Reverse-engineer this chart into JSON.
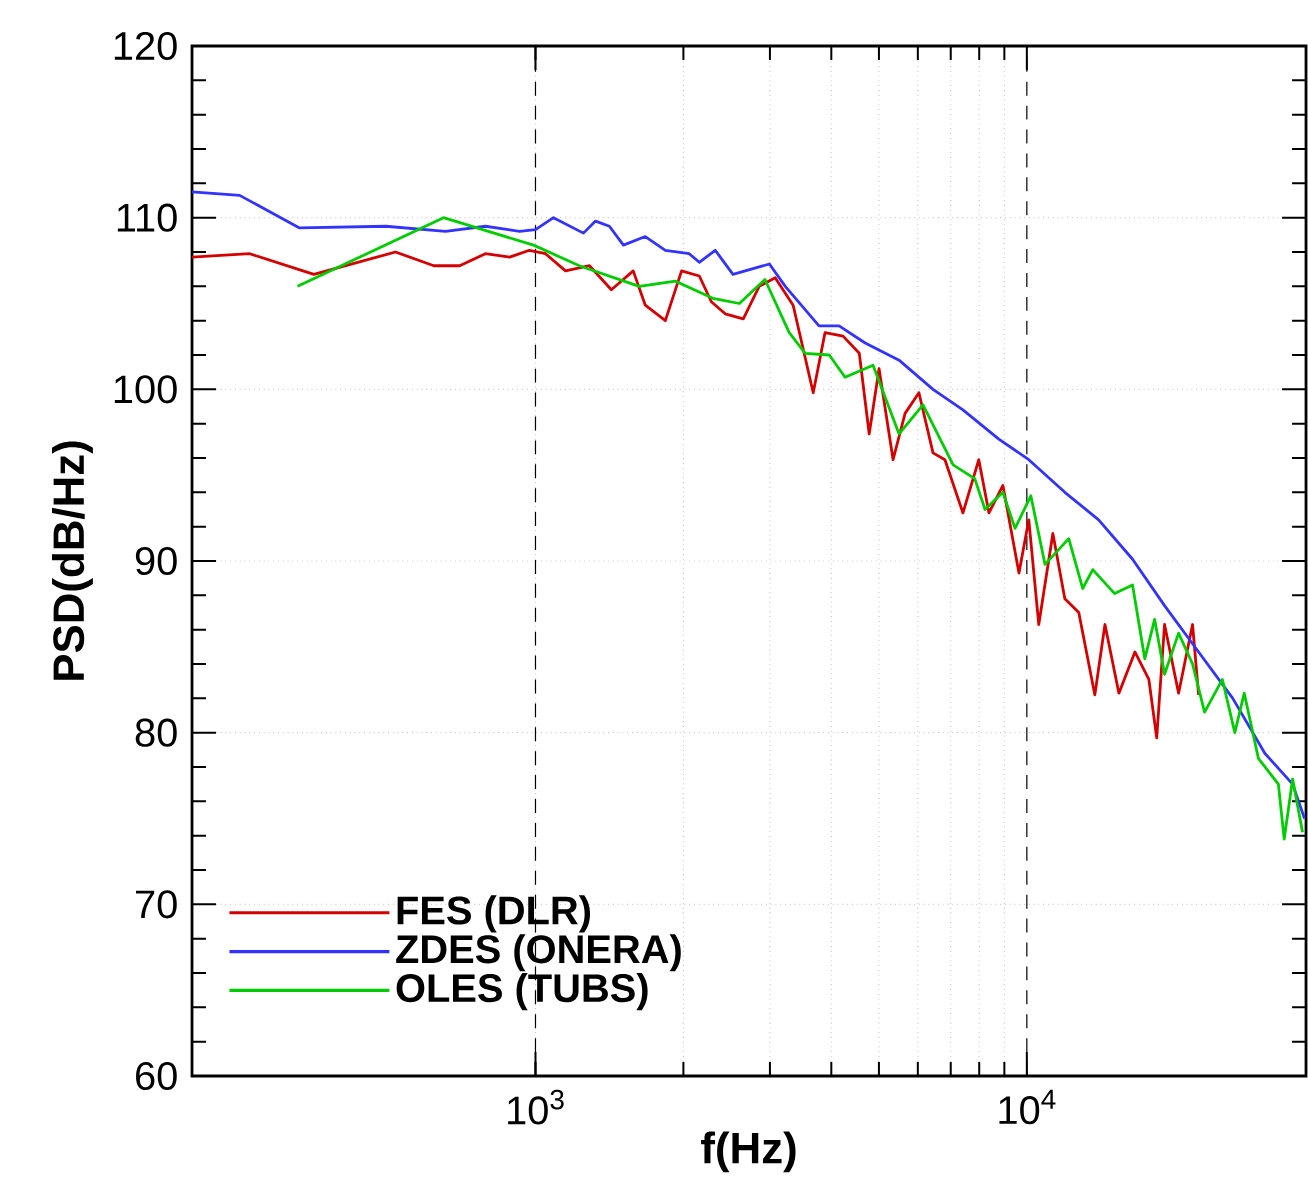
{
  "chart_data": {
    "type": "line",
    "xlabel": "f(Hz)",
    "ylabel": "PSD(dB/Hz)",
    "log": "x",
    "xlim": [
      200,
      37000
    ],
    "ylim": [
      60,
      120
    ],
    "xticks": [
      {
        "value": 1000,
        "label": "10$^{3}$"
      },
      {
        "value": 10000,
        "label": "10$^{4}$"
      }
    ],
    "yticks": [
      60,
      70,
      80,
      90,
      100,
      110,
      120
    ],
    "grid": true,
    "legend": "bottom left",
    "line_style": "solid",
    "marker": "none",
    "series": [
      {
        "name": "FES (DLR)",
        "color": "#d40000",
        "x": [
          200,
          262,
          354,
          519,
          621,
          701,
          791,
          886,
          972,
          1048,
          1151,
          1288,
          1427,
          1581,
          1673,
          1838,
          1983,
          2155,
          2280,
          2433,
          2648,
          2853,
          3075,
          3345,
          3675,
          3884,
          4227,
          4560,
          4777,
          5003,
          5343,
          5652,
          6031,
          6442,
          6813,
          7413,
          7985,
          8373,
          8939,
          9638,
          10092,
          10575,
          11297,
          11949,
          12755,
          13753,
          14421,
          15394,
          16596,
          17715,
          18379,
          19069,
          20363,
          21740,
          22367
        ],
        "values": [
          107.7,
          107.9,
          106.7,
          108.0,
          107.2,
          107.2,
          107.9,
          107.7,
          108.1,
          107.9,
          106.9,
          107.2,
          105.8,
          106.9,
          104.9,
          104.0,
          106.9,
          106.6,
          105.1,
          104.4,
          104.1,
          106.0,
          106.5,
          104.9,
          99.8,
          103.3,
          103.1,
          102.1,
          97.4,
          101.2,
          95.9,
          98.6,
          99.8,
          96.3,
          95.9,
          92.8,
          95.9,
          92.8,
          94.4,
          89.3,
          92.4,
          86.3,
          91.6,
          87.8,
          87.0,
          82.2,
          86.3,
          82.3,
          84.7,
          83.1,
          79.7,
          86.3,
          82.3,
          86.3,
          82.2
        ]
      },
      {
        "name": "ZDES (ONERA)",
        "color": "#3333ff",
        "x": [
          200,
          250,
          331,
          496,
          656,
          791,
          928,
          1000,
          1088,
          1252,
          1325,
          1414,
          1510,
          1673,
          1838,
          2055,
          2155,
          2322,
          2523,
          2993,
          3224,
          3776,
          4149,
          4688,
          5495,
          6442,
          7413,
          8770,
          10092,
          11949,
          14000,
          16414,
          19069,
          22367,
          26248,
          30500,
          34750,
          36740
        ],
        "values": [
          111.5,
          111.3,
          109.4,
          109.5,
          109.2,
          109.5,
          109.2,
          109.3,
          110.0,
          109.1,
          109.8,
          109.5,
          108.4,
          108.9,
          108.1,
          107.9,
          107.4,
          108.1,
          106.7,
          107.3,
          106.0,
          103.7,
          103.7,
          102.7,
          101.7,
          100.0,
          98.8,
          97.1,
          95.9,
          94.0,
          92.4,
          90.1,
          87.4,
          84.7,
          82.0,
          78.8,
          77.0,
          75.0
        ]
      },
      {
        "name": "OLES (TUBS)",
        "color": "#00cc00",
        "x": [
          328,
          650,
          991,
          1228,
          1626,
          1928,
          2296,
          2600,
          2931,
          3284,
          3540,
          3963,
          4266,
          4864,
          5495,
          6147,
          7080,
          7834,
          8221,
          8939,
          9460,
          10190,
          10890,
          12170,
          12990,
          13620,
          15090,
          16410,
          17380,
          18200,
          19069,
          20363,
          21740,
          23000,
          25000,
          26500,
          27700,
          29600,
          32500,
          33400,
          34750,
          36400
        ],
        "values": [
          106.0,
          110.0,
          108.4,
          107.2,
          106.0,
          106.3,
          105.3,
          105.0,
          106.4,
          103.3,
          102.1,
          102.0,
          100.7,
          101.4,
          97.4,
          99.1,
          95.6,
          94.8,
          93.0,
          94.0,
          91.9,
          93.8,
          89.8,
          91.3,
          88.4,
          89.5,
          88.1,
          88.6,
          84.3,
          86.6,
          83.4,
          85.8,
          84.0,
          81.2,
          83.1,
          80.0,
          82.3,
          78.5,
          77.0,
          73.8,
          77.3,
          74.2
        ]
      }
    ]
  }
}
